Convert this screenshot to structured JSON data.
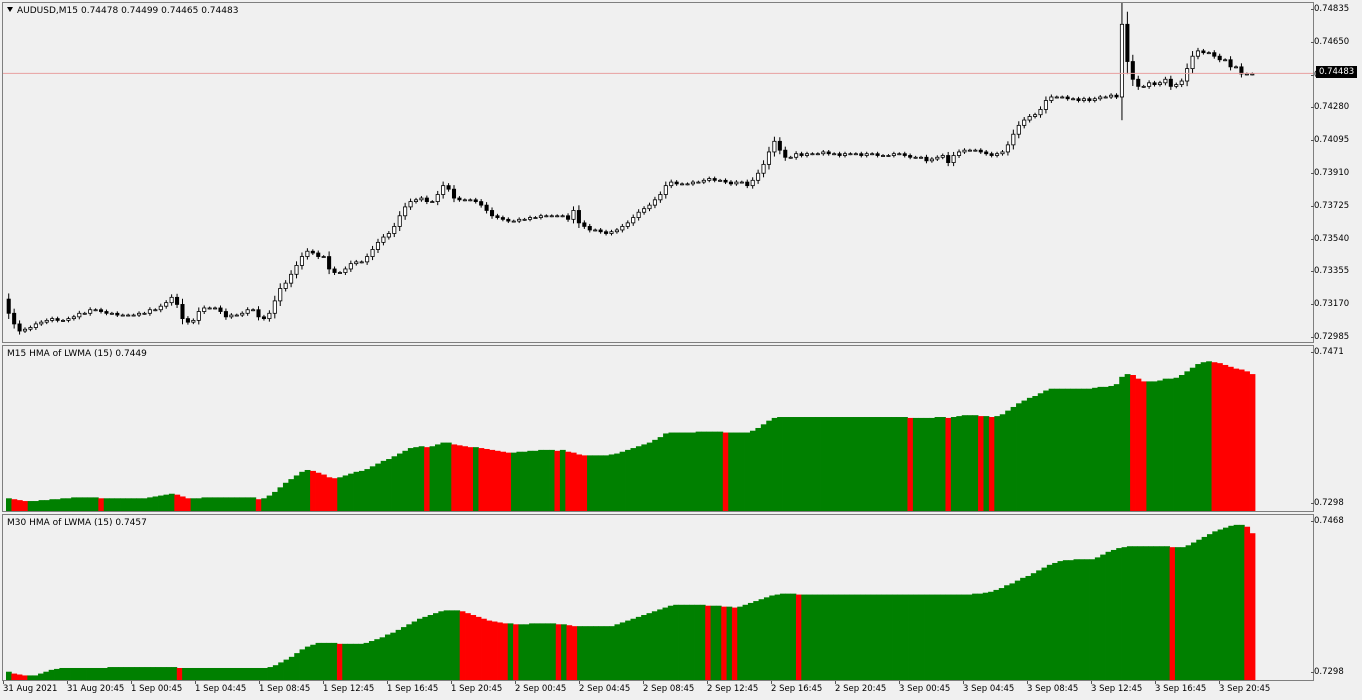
{
  "main": {
    "symbol": "AUDUSD,M15",
    "ohlc": "0.74478 0.74499 0.74465 0.74483",
    "current_price": "0.74483",
    "price_line_color": "#e8a0a0",
    "axis_labels": [
      "0.74835",
      "0.74650",
      "0.74465",
      "0.74280",
      "0.74095",
      "0.73910",
      "0.73725",
      "0.73540",
      "0.73355",
      "0.73170",
      "0.72985"
    ],
    "series_close": [
      0.7313,
      0.7307,
      0.7303,
      0.7304,
      0.7305,
      0.7307,
      0.7308,
      0.7309,
      0.731,
      0.7309,
      0.7309,
      0.731,
      0.7311,
      0.7313,
      0.7313,
      0.7315,
      0.7315,
      0.7314,
      0.7313,
      0.7313,
      0.7312,
      0.7312,
      0.7312,
      0.7312,
      0.7313,
      0.7313,
      0.7315,
      0.7315,
      0.7317,
      0.7319,
      0.7322,
      0.7318,
      0.731,
      0.7308,
      0.7309,
      0.7314,
      0.7316,
      0.7316,
      0.7316,
      0.7314,
      0.7311,
      0.7312,
      0.7312,
      0.7313,
      0.7315,
      0.7315,
      0.7311,
      0.731,
      0.7313,
      0.732,
      0.7327,
      0.733,
      0.7335,
      0.734,
      0.7345,
      0.7348,
      0.7347,
      0.7345,
      0.7345,
      0.7338,
      0.7336,
      0.7336,
      0.7338,
      0.7341,
      0.7342,
      0.7342,
      0.7345,
      0.7349,
      0.7353,
      0.7356,
      0.7358,
      0.7362,
      0.7368,
      0.7373,
      0.7376,
      0.7377,
      0.7378,
      0.7376,
      0.7376,
      0.738,
      0.7385,
      0.7383,
      0.7378,
      0.7377,
      0.7377,
      0.7377,
      0.7376,
      0.7374,
      0.7371,
      0.7368,
      0.7367,
      0.7366,
      0.7365,
      0.7365,
      0.7366,
      0.7366,
      0.7367,
      0.7367,
      0.7368,
      0.7368,
      0.7368,
      0.7368,
      0.7368,
      0.7366,
      0.7371,
      0.7364,
      0.7362,
      0.736,
      0.736,
      0.7359,
      0.7358,
      0.7359,
      0.736,
      0.7362,
      0.7364,
      0.7367,
      0.737,
      0.7372,
      0.7374,
      0.7377,
      0.738,
      0.7385,
      0.7387,
      0.7386,
      0.7386,
      0.7386,
      0.7387,
      0.7387,
      0.7388,
      0.7389,
      0.7388,
      0.7388,
      0.7387,
      0.7386,
      0.7387,
      0.7387,
      0.7385,
      0.7388,
      0.7392,
      0.7397,
      0.7404,
      0.741,
      0.7405,
      0.7401,
      0.7401,
      0.7403,
      0.7402,
      0.7403,
      0.7403,
      0.7403,
      0.7404,
      0.7403,
      0.7403,
      0.7402,
      0.7403,
      0.7403,
      0.7403,
      0.7402,
      0.7403,
      0.7403,
      0.7402,
      0.7402,
      0.7402,
      0.7403,
      0.7403,
      0.7402,
      0.7401,
      0.7401,
      0.7401,
      0.7399,
      0.74,
      0.7401,
      0.7402,
      0.7398,
      0.7402,
      0.7404,
      0.7405,
      0.7405,
      0.7405,
      0.7404,
      0.7403,
      0.7402,
      0.7403,
      0.7404,
      0.7408,
      0.7414,
      0.7419,
      0.7422,
      0.7424,
      0.7425,
      0.7428,
      0.7433,
      0.7435,
      0.7435,
      0.7435,
      0.7434,
      0.7434,
      0.7433,
      0.7434,
      0.7433,
      0.7434,
      0.7435,
      0.7435,
      0.7436,
      0.7435,
      0.7476,
      0.7455,
      0.7445,
      0.7441,
      0.7441,
      0.7443,
      0.7442,
      0.7443,
      0.7445,
      0.7441,
      0.7442,
      0.7444,
      0.7451,
      0.7458,
      0.7461,
      0.746,
      0.746,
      0.7458,
      0.7456,
      0.7456,
      0.7452,
      0.7452,
      0.7448,
      0.7448,
      0.7448
    ],
    "y_range": [
      0.72985,
      0.74835
    ]
  },
  "hma_m15": {
    "label": "M15 HMA of LWMA (15) 0.7449",
    "axis_top": "0.7471",
    "axis_bottom": "0.7298",
    "up_color": "#008000",
    "down_color": "#ff0000",
    "values": [
      0.7313,
      0.7312,
      0.7311,
      0.731,
      0.731,
      0.731,
      0.7311,
      0.7311,
      0.7312,
      0.7312,
      0.7313,
      0.7313,
      0.7314,
      0.7314,
      0.7314,
      0.7314,
      0.7314,
      0.7313,
      0.7313,
      0.7313,
      0.7313,
      0.7313,
      0.7313,
      0.7313,
      0.7313,
      0.7313,
      0.7314,
      0.7315,
      0.7316,
      0.7317,
      0.7318,
      0.7317,
      0.7315,
      0.7313,
      0.7313,
      0.7313,
      0.7314,
      0.7314,
      0.7314,
      0.7314,
      0.7314,
      0.7314,
      0.7314,
      0.7314,
      0.7314,
      0.7314,
      0.7312,
      0.7313,
      0.7316,
      0.732,
      0.7325,
      0.733,
      0.7334,
      0.7338,
      0.7342,
      0.7344,
      0.7343,
      0.7341,
      0.7339,
      0.7336,
      0.7335,
      0.7336,
      0.7338,
      0.734,
      0.7342,
      0.7343,
      0.7345,
      0.7348,
      0.7351,
      0.7354,
      0.7356,
      0.7359,
      0.7362,
      0.7365,
      0.7368,
      0.7369,
      0.737,
      0.7369,
      0.737,
      0.7372,
      0.7374,
      0.7374,
      0.7372,
      0.7371,
      0.737,
      0.7369,
      0.7369,
      0.7368,
      0.7367,
      0.7366,
      0.7365,
      0.7364,
      0.7363,
      0.7363,
      0.7364,
      0.7364,
      0.7365,
      0.7365,
      0.7366,
      0.7366,
      0.7366,
      0.7365,
      0.7366,
      0.7364,
      0.7363,
      0.7361,
      0.736,
      0.736,
      0.736,
      0.736,
      0.736,
      0.7361,
      0.7362,
      0.7364,
      0.7366,
      0.7368,
      0.737,
      0.7372,
      0.7374,
      0.7377,
      0.738,
      0.7384,
      0.7385,
      0.7385,
      0.7385,
      0.7385,
      0.7385,
      0.7386,
      0.7386,
      0.7386,
      0.7386,
      0.7386,
      0.7385,
      0.7385,
      0.7385,
      0.7385,
      0.7385,
      0.7387,
      0.739,
      0.7394,
      0.7398,
      0.7401,
      0.7402,
      0.7402,
      0.7402,
      0.7402,
      0.7402,
      0.7402,
      0.7402,
      0.7402,
      0.7402,
      0.7402,
      0.7402,
      0.7402,
      0.7402,
      0.7402,
      0.7402,
      0.7402,
      0.7402,
      0.7402,
      0.7402,
      0.7402,
      0.7402,
      0.7402,
      0.7402,
      0.7402,
      0.7401,
      0.7401,
      0.7401,
      0.7401,
      0.7401,
      0.7402,
      0.7402,
      0.7401,
      0.7402,
      0.7403,
      0.7404,
      0.7404,
      0.7404,
      0.7403,
      0.7403,
      0.7402,
      0.7403,
      0.7405,
      0.7409,
      0.7413,
      0.7417,
      0.742,
      0.7423,
      0.7425,
      0.7428,
      0.7431,
      0.7433,
      0.7433,
      0.7433,
      0.7433,
      0.7433,
      0.7433,
      0.7433,
      0.7433,
      0.7434,
      0.7435,
      0.7435,
      0.7436,
      0.7438,
      0.7446,
      0.7449,
      0.7448,
      0.7444,
      0.7441,
      0.7441,
      0.7441,
      0.7442,
      0.7444,
      0.7444,
      0.7445,
      0.7448,
      0.7452,
      0.7456,
      0.746,
      0.7462,
      0.7463,
      0.7462,
      0.7461,
      0.7459,
      0.7457,
      0.7455,
      0.7454,
      0.7452,
      0.7449
    ],
    "y_range": [
      0.7298,
      0.7471
    ]
  },
  "hma_m30": {
    "label": "M30 HMA of LWMA (15) 0.7457",
    "axis_top": "0.7468",
    "axis_bottom": "0.7298",
    "up_color": "#008000",
    "down_color": "#ff0000",
    "values": [
      0.7308,
      0.7306,
      0.7305,
      0.7304,
      0.7304,
      0.7304,
      0.7306,
      0.7308,
      0.731,
      0.7311,
      0.7312,
      0.7312,
      0.7312,
      0.7312,
      0.7312,
      0.7312,
      0.7312,
      0.7312,
      0.7312,
      0.7313,
      0.7313,
      0.7313,
      0.7313,
      0.7313,
      0.7313,
      0.7313,
      0.7313,
      0.7313,
      0.7313,
      0.7313,
      0.7313,
      0.7313,
      0.7312,
      0.7312,
      0.7312,
      0.7312,
      0.7312,
      0.7312,
      0.7312,
      0.7312,
      0.7312,
      0.7312,
      0.7312,
      0.7312,
      0.7312,
      0.7312,
      0.7312,
      0.7312,
      0.7312,
      0.7313,
      0.7315,
      0.7318,
      0.7321,
      0.7324,
      0.7328,
      0.7332,
      0.7335,
      0.7337,
      0.7339,
      0.7339,
      0.7339,
      0.7339,
      0.7338,
      0.7338,
      0.7338,
      0.7338,
      0.7338,
      0.7339,
      0.7341,
      0.7343,
      0.7345,
      0.7348,
      0.735,
      0.7353,
      0.7356,
      0.7359,
      0.7362,
      0.7365,
      0.7367,
      0.7369,
      0.7371,
      0.7373,
      0.7374,
      0.7374,
      0.7374,
      0.7373,
      0.7371,
      0.7369,
      0.7367,
      0.7365,
      0.7363,
      0.7362,
      0.7361,
      0.736,
      0.736,
      0.7359,
      0.7359,
      0.7359,
      0.736,
      0.736,
      0.736,
      0.736,
      0.736,
      0.7359,
      0.7359,
      0.7358,
      0.7357,
      0.7357,
      0.7357,
      0.7357,
      0.7357,
      0.7357,
      0.7357,
      0.7357,
      0.7359,
      0.7361,
      0.7363,
      0.7365,
      0.7367,
      0.7369,
      0.7371,
      0.7373,
      0.7375,
      0.7377,
      0.7379,
      0.738,
      0.738,
      0.738,
      0.738,
      0.738,
      0.738,
      0.7379,
      0.7379,
      0.7379,
      0.7378,
      0.7378,
      0.7377,
      0.7378,
      0.738,
      0.7382,
      0.7384,
      0.7386,
      0.7388,
      0.739,
      0.7391,
      0.7392,
      0.7392,
      0.7392,
      0.7391,
      0.7391,
      0.7391,
      0.7391,
      0.7391,
      0.7391,
      0.7391,
      0.7391,
      0.7391,
      0.7391,
      0.7391,
      0.7391,
      0.7391,
      0.7391,
      0.7391,
      0.7391,
      0.7391,
      0.7391,
      0.7391,
      0.7391,
      0.7391,
      0.7391,
      0.7391,
      0.7391,
      0.7391,
      0.7391,
      0.7391,
      0.7391,
      0.7391,
      0.7391,
      0.7391,
      0.7391,
      0.7391,
      0.7392,
      0.7392,
      0.7393,
      0.7394,
      0.7396,
      0.7398,
      0.7401,
      0.7403,
      0.7406,
      0.7409,
      0.7411,
      0.7414,
      0.7417,
      0.742,
      0.7423,
      0.7425,
      0.7427,
      0.7428,
      0.7428,
      0.7429,
      0.7429,
      0.7429,
      0.7429,
      0.7431,
      0.7434,
      0.7437,
      0.7439,
      0.7441,
      0.7442,
      0.7443,
      0.7443,
      0.7443,
      0.7443,
      0.7443,
      0.7443,
      0.7443,
      0.7443,
      0.7442,
      0.7442,
      0.7442,
      0.7444,
      0.7447,
      0.745,
      0.7453,
      0.7456,
      0.7459,
      0.7461,
      0.7463,
      0.7465,
      0.7466,
      0.7466,
      0.7464,
      0.7457
    ],
    "y_range": [
      0.7298,
      0.7468
    ]
  },
  "time_labels": [
    "31 Aug 2021",
    "31 Aug 20:45",
    "1 Sep 00:45",
    "1 Sep 04:45",
    "1 Sep 08:45",
    "1 Sep 12:45",
    "1 Sep 16:45",
    "1 Sep 20:45",
    "2 Sep 00:45",
    "2 Sep 04:45",
    "2 Sep 08:45",
    "2 Sep 12:45",
    "2 Sep 16:45",
    "2 Sep 20:45",
    "3 Sep 00:45",
    "3 Sep 04:45",
    "3 Sep 08:45",
    "3 Sep 12:45",
    "3 Sep 16:45",
    "3 Sep 20:45"
  ]
}
